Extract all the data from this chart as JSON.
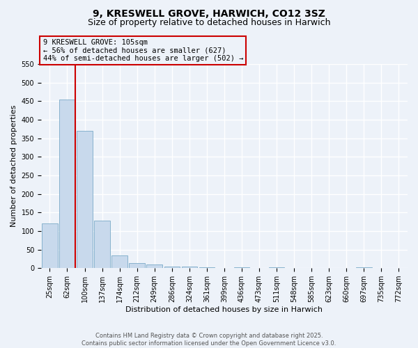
{
  "title": "9, KRESWELL GROVE, HARWICH, CO12 3SZ",
  "subtitle": "Size of property relative to detached houses in Harwich",
  "xlabel": "Distribution of detached houses by size in Harwich",
  "ylabel": "Number of detached properties",
  "categories": [
    "25sqm",
    "62sqm",
    "100sqm",
    "137sqm",
    "174sqm",
    "212sqm",
    "249sqm",
    "286sqm",
    "324sqm",
    "361sqm",
    "399sqm",
    "436sqm",
    "473sqm",
    "511sqm",
    "548sqm",
    "585sqm",
    "623sqm",
    "660sqm",
    "697sqm",
    "735sqm",
    "772sqm"
  ],
  "values": [
    120,
    455,
    370,
    128,
    35,
    14,
    9,
    5,
    5,
    2,
    0,
    2,
    0,
    2,
    0,
    0,
    0,
    0,
    2,
    0,
    0
  ],
  "bar_color": "#c8d9ec",
  "bar_edge_color": "#7aaac8",
  "vline_index": 1,
  "vline_color": "#cc0000",
  "annotation_line1": "9 KRESWELL GROVE: 105sqm",
  "annotation_line2": "← 56% of detached houses are smaller (627)",
  "annotation_line3": "44% of semi-detached houses are larger (502) →",
  "annotation_box_edgecolor": "#cc0000",
  "background_color": "#edf2f9",
  "grid_color": "#ffffff",
  "ylim": [
    0,
    550
  ],
  "yticks": [
    0,
    50,
    100,
    150,
    200,
    250,
    300,
    350,
    400,
    450,
    500,
    550
  ],
  "footer": "Contains HM Land Registry data © Crown copyright and database right 2025.\nContains public sector information licensed under the Open Government Licence v3.0.",
  "title_fontsize": 10,
  "subtitle_fontsize": 9,
  "tick_fontsize": 7,
  "ylabel_fontsize": 8,
  "xlabel_fontsize": 8,
  "annotation_fontsize": 7.5
}
